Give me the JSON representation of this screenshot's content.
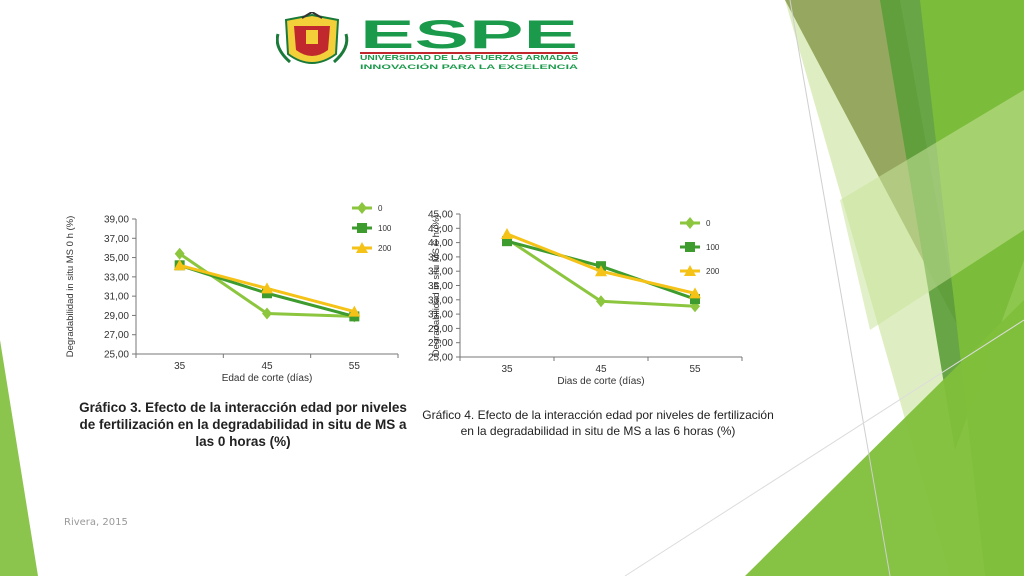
{
  "brand": {
    "name": "ESPE",
    "subtitle": "UNIVERSIDAD DE LAS FUERZAS ARMADAS",
    "tagline": "INNOVACIÓN PARA LA EXCELENCIA",
    "colors": {
      "green": "#1a9a4a",
      "red": "#c0282d"
    }
  },
  "colors": {
    "series": [
      "#8cc63f",
      "#3e9b2e",
      "#f5c218"
    ],
    "deco_dark": "#5b9c38",
    "deco_mid": "#7fbf3a",
    "deco_light": "#c9e39a",
    "deco_olive": "#8a9b4e"
  },
  "footer": "Rivera, 2015",
  "captions": {
    "chart1": "Gráfico 3.  Efecto de la interacción edad por niveles de fertilización en la degradabilidad in situ de  MS  a las 0 horas (%)",
    "chart2": "Gráfico 4.  Efecto de la interacción edad por niveles de fertilización en la degradabilidad in situ de  MS  a las 6 horas (%)"
  },
  "chart_data": [
    {
      "type": "line",
      "title": "",
      "xlabel": "Edad de corte (días)",
      "ylabel": "Degradabilidad in situ MS 0 h (%)",
      "categories": [
        "35",
        "45",
        "55"
      ],
      "ylim": [
        25,
        39
      ],
      "yticks": [
        "25,00",
        "27,00",
        "29,00",
        "31,00",
        "33,00",
        "35,00",
        "37,00",
        "39,00"
      ],
      "legend_position": "top-right",
      "series": [
        {
          "name": "0",
          "values": [
            35.4,
            29.2,
            28.9
          ],
          "marker": "diamond"
        },
        {
          "name": "100",
          "values": [
            34.2,
            31.3,
            28.9
          ],
          "marker": "square"
        },
        {
          "name": "200",
          "values": [
            34.2,
            31.8,
            29.4
          ],
          "marker": "triangle"
        }
      ]
    },
    {
      "type": "line",
      "title": "",
      "xlabel": "Dias de corte (días)",
      "ylabel": "Degradabilidad in situ MS 6 h (%)",
      "categories": [
        "35",
        "45",
        "55"
      ],
      "ylim": [
        25,
        45
      ],
      "yticks": [
        "25,00",
        "27,00",
        "29,00",
        "31,00",
        "33,00",
        "35,00",
        "37,00",
        "39,00",
        "41,00",
        "43,00",
        "45,00"
      ],
      "legend_position": "top-right",
      "series": [
        {
          "name": "0",
          "values": [
            41.5,
            32.8,
            32.1
          ],
          "marker": "diamond"
        },
        {
          "name": "100",
          "values": [
            41.2,
            37.7,
            33.1
          ],
          "marker": "square"
        },
        {
          "name": "200",
          "values": [
            42.2,
            37.0,
            33.9
          ],
          "marker": "triangle"
        }
      ]
    }
  ]
}
